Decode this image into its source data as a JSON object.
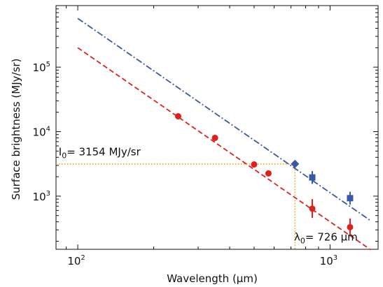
{
  "chart_data": {
    "type": "scatter",
    "xlabel": "Wavelength (μm)",
    "ylabel": "Surface brightness (MJy/sr)",
    "x_scale": "log",
    "y_scale": "log",
    "xlim": [
      82,
      1550
    ],
    "ylim": [
      150,
      900000
    ],
    "grid": false,
    "x_ticks": [
      {
        "value": 100,
        "base": "10",
        "exp": "2"
      },
      {
        "value": 1000,
        "base": "10",
        "exp": "3"
      }
    ],
    "y_ticks": [
      {
        "value": 1000,
        "base": "10",
        "exp": "3"
      },
      {
        "value": 10000,
        "base": "10",
        "exp": "4"
      },
      {
        "value": 100000,
        "base": "10",
        "exp": "5"
      }
    ],
    "series": [
      {
        "marker": "circle",
        "color": "#e0201d",
        "points": [
          {
            "x": 250,
            "y": 17300,
            "yerr": [
              15600,
              19200
            ]
          },
          {
            "x": 350,
            "y": 8000,
            "yerr": [
              7200,
              8900
            ]
          },
          {
            "x": 500,
            "y": 3100,
            "yerr": [
              2800,
              3420
            ]
          },
          {
            "x": 570,
            "y": 2250,
            "yerr": [
              2050,
              2480
            ]
          },
          {
            "x": 850,
            "y": 640,
            "yerr": [
              460,
              900
            ]
          },
          {
            "x": 1200,
            "y": 330,
            "yerr": [
              240,
              450
            ]
          }
        ]
      },
      {
        "marker": "square",
        "color": "#3a57a8",
        "points": [
          {
            "x": 726,
            "y": 3154,
            "marker": "diamond"
          },
          {
            "x": 850,
            "y": 1950,
            "yerr": [
              1550,
              2450
            ]
          },
          {
            "x": 1200,
            "y": 930,
            "yerr": [
              740,
              1170
            ]
          }
        ]
      }
    ],
    "fit_lines": [
      {
        "style": "dashed",
        "color": "#e0201d",
        "x": [
          100,
          1450
        ],
        "y": [
          200000,
          147
        ]
      },
      {
        "style": "dashdot",
        "color": "#3a57a8",
        "x": [
          100,
          1450
        ],
        "y": [
          570000,
          415
        ]
      }
    ],
    "reference_lines": {
      "color": "#f0a500",
      "x": 726,
      "y": 3154
    },
    "annotations": {
      "intensity": {
        "symbol": "I",
        "sub": "0",
        "rest": "= 3154 MJy/sr",
        "x": 84,
        "y": 4300
      },
      "wavelength": {
        "symbol": "λ",
        "sub": "0",
        "rest": "= 726 μm",
        "x": 720,
        "y": 205
      }
    }
  }
}
